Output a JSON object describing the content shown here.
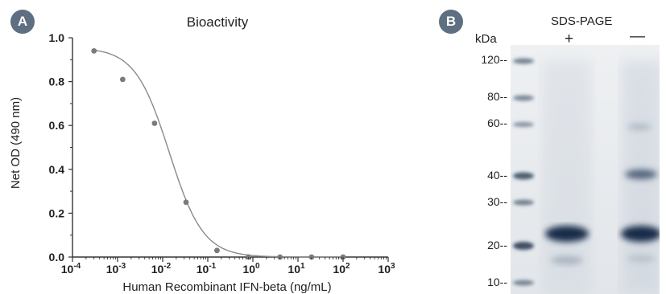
{
  "panel_a": {
    "badge": "A"
  },
  "panel_b": {
    "badge": "B",
    "title": "SDS-PAGE",
    "kda_label": "kDa",
    "lane_labels": [
      "+",
      "—"
    ],
    "markers": [
      "120--",
      "80--",
      "60--",
      "40--",
      "30--",
      "20--",
      "10--"
    ],
    "marker_kda": [
      120,
      80,
      60,
      40,
      30,
      20,
      10
    ]
  },
  "chart_data": {
    "type": "scatter",
    "title": "Bioactivity",
    "xlabel": "Human Recombinant IFN-beta (ng/mL)",
    "ylabel": "Net OD (490 nm)",
    "xscale": "log",
    "xlim": [
      0.0001,
      1000
    ],
    "ylim": [
      0.0,
      1.0
    ],
    "x_ticks": [
      "10^-4",
      "10^-3",
      "10^-2",
      "10^-1",
      "10^0",
      "10^1",
      "10^2",
      "10^3"
    ],
    "y_ticks": [
      "0.0",
      "0.2",
      "0.4",
      "0.6",
      "0.8",
      "1.0"
    ],
    "series": [
      {
        "x": [
          0.0003,
          0.0013,
          0.0066,
          0.033,
          0.16,
          0.8,
          4,
          20,
          100
        ],
        "y": [
          0.94,
          0.81,
          0.61,
          0.25,
          0.03,
          0.0,
          0.0,
          0.0,
          0.0
        ]
      }
    ],
    "fit_curve": true,
    "colors": {
      "points": "#7a7a7a",
      "curve": "#8a8a8a",
      "axis": "#333333"
    }
  }
}
